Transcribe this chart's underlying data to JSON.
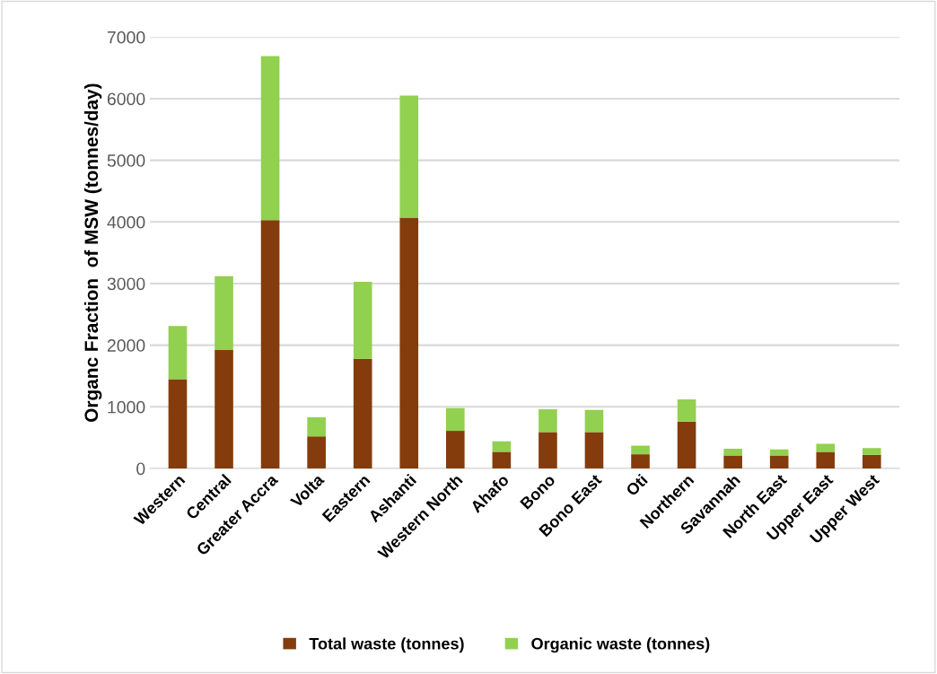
{
  "chart_data": {
    "type": "bar",
    "stacked": true,
    "ylabel": "Organc Fraction  of MSW (tonnes/day)",
    "categories": [
      "Western",
      "Central",
      "Greater Accra",
      "Volta",
      "Eastern",
      "Ashanti",
      "Western North",
      "Ahafo",
      "Bono",
      "Bono East",
      "Oti",
      "Northern",
      "Savannah",
      "North East",
      "Upper East",
      "Upper West"
    ],
    "series": [
      {
        "name": "Total waste (tonnes)",
        "color": "#843c0c",
        "values": [
          1450,
          1920,
          4030,
          520,
          1780,
          4070,
          610,
          270,
          590,
          590,
          230,
          760,
          210,
          210,
          270,
          220
        ]
      },
      {
        "name": "Organic waste (tonnes)",
        "color": "#92d050",
        "values": [
          860,
          1200,
          2660,
          310,
          1250,
          1980,
          370,
          170,
          370,
          360,
          140,
          360,
          110,
          100,
          130,
          110
        ]
      }
    ],
    "ylim": [
      0,
      7000
    ],
    "yticks": [
      0,
      1000,
      2000,
      3000,
      4000,
      5000,
      6000,
      7000
    ],
    "grid": "y",
    "legend": "bottom"
  }
}
